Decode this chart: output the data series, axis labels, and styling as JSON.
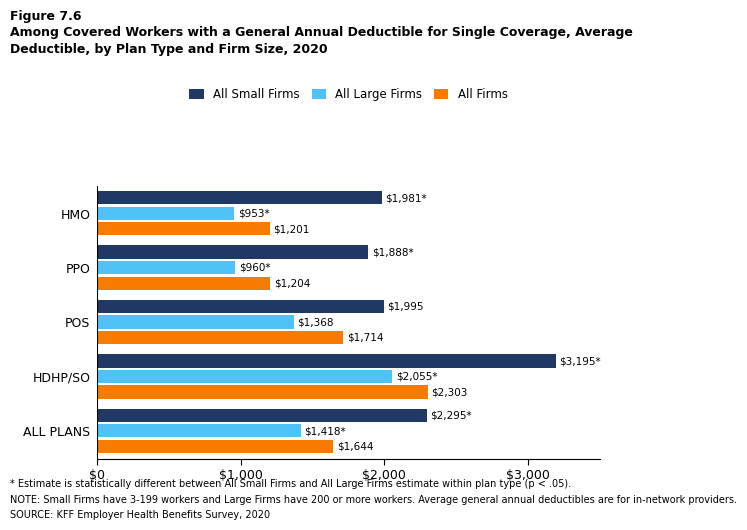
{
  "title_line1": "Figure 7.6",
  "title_line2": "Among Covered Workers with a General Annual Deductible for Single Coverage, Average",
  "title_line3": "Deductible, by Plan Type and Firm Size, 2020",
  "categories": [
    "HMO",
    "PPO",
    "POS",
    "HDHP/SO",
    "ALL PLANS"
  ],
  "series": {
    "All Small Firms": [
      1981,
      1888,
      1995,
      3195,
      2295
    ],
    "All Large Firms": [
      953,
      960,
      1368,
      2055,
      1418
    ],
    "All Firms": [
      1201,
      1204,
      1714,
      2303,
      1644
    ]
  },
  "labels": {
    "All Small Firms": [
      "$1,981*",
      "$1,888*",
      "$1,995",
      "$3,195*",
      "$2,295*"
    ],
    "All Large Firms": [
      "$953*",
      "$960*",
      "$1,368",
      "$2,055*",
      "$1,418*"
    ],
    "All Firms": [
      "$1,201",
      "$1,204",
      "$1,714",
      "$2,303",
      "$1,644"
    ]
  },
  "colors": {
    "All Small Firms": "#1f3864",
    "All Large Firms": "#4fc3f7",
    "All Firms": "#f57c00"
  },
  "legend_order": [
    "All Small Firms",
    "All Large Firms",
    "All Firms"
  ],
  "xlim": [
    0,
    3500
  ],
  "xticks": [
    0,
    1000,
    2000,
    3000
  ],
  "xticklabels": [
    "$0",
    "$1,000",
    "$2,000",
    "$3,000"
  ],
  "footnote1": "* Estimate is statistically different between All Small Firms and All Large Firms estimate within plan type (p < .05).",
  "footnote2": "NOTE: Small Firms have 3-199 workers and Large Firms have 200 or more workers. Average general annual deductibles are for in-network providers.",
  "footnote3": "SOURCE: KFF Employer Health Benefits Survey, 2020",
  "background_color": "#ffffff"
}
